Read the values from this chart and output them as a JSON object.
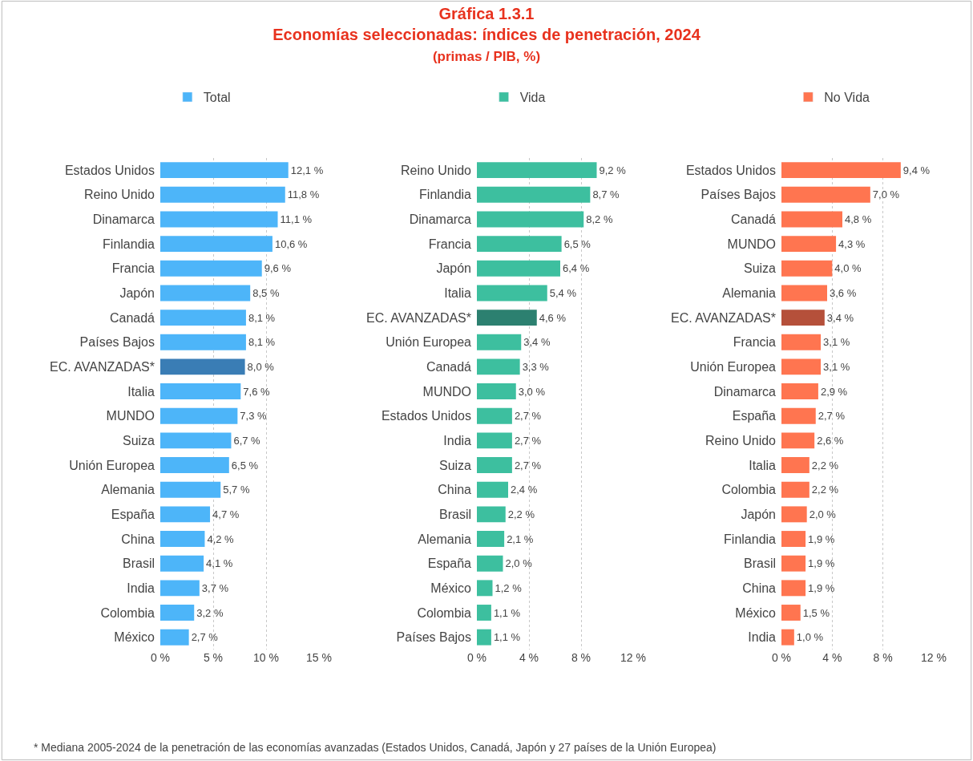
{
  "chart_data": [
    {
      "type": "bar",
      "orientation": "horizontal",
      "categories": [
        "Estados Unidos",
        "Reino Unido",
        "Dinamarca",
        "Finlandia",
        "Francia",
        "Japón",
        "Canadá",
        "Países Bajos",
        "EC. AVANZADAS*",
        "Italia",
        "MUNDO",
        "Suiza",
        "Unión Europea",
        "Alemania",
        "España",
        "China",
        "Brasil",
        "India",
        "Colombia",
        "México"
      ],
      "series": [
        {
          "name": "Total",
          "color": "#4db5f9",
          "colors": [
            "#4db5f9",
            "#4db5f9",
            "#4db5f9",
            "#4db5f9",
            "#4db5f9",
            "#4db5f9",
            "#4db5f9",
            "#4db5f9",
            "#3a7db5",
            "#4db5f9",
            "#4db5f9",
            "#4db5f9",
            "#4db5f9",
            "#4db5f9",
            "#4db5f9",
            "#4db5f9",
            "#4db5f9",
            "#4db5f9",
            "#4db5f9",
            "#4db5f9"
          ],
          "values": [
            12.1,
            11.8,
            11.1,
            10.6,
            9.6,
            8.5,
            8.1,
            8.1,
            8.0,
            7.6,
            7.3,
            6.7,
            6.5,
            5.7,
            4.7,
            4.2,
            4.1,
            3.7,
            3.2,
            2.7
          ],
          "value_labels": [
            "12,1 %",
            "11,8 %",
            "11,1 %",
            "10,6 %",
            "9,6 %",
            "8,5 %",
            "8,1 %",
            "8,1 %",
            "8,0 %",
            "7,6 %",
            "7,3 %",
            "6,7 %",
            "6,5 %",
            "5,7 %",
            "4,7 %",
            "4,2 %",
            "4,1 %",
            "3,7 %",
            "3,2 %",
            "2,7 %"
          ]
        }
      ],
      "xlim": [
        0,
        15
      ],
      "xticks": [
        {
          "value": 0,
          "label": "0 %"
        },
        {
          "value": 5,
          "label": "5 %"
        },
        {
          "value": 10,
          "label": "10 %"
        },
        {
          "value": 15,
          "label": "15 %"
        }
      ],
      "grid": "x",
      "legend": "top",
      "annotations": [
        "* Mediana 2005-2024 de la penetración de las economías avanzadas (Estados Unidos, Canadá, Japón y 27 países de la Unión Europea)"
      ]
    },
    {
      "type": "bar",
      "orientation": "horizontal",
      "title": "Gráfica 1.3.1\nEconomías seleccionadas: índices de penetración, 2024",
      "subtitle": "(primas / PIB, %)",
      "categories": [
        "Reino Unido",
        "Finlandia",
        "Dinamarca",
        "Francia",
        "Japón",
        "Italia",
        "EC. AVANZADAS*",
        "Unión Europea",
        "Canadá",
        "MUNDO",
        "Estados Unidos",
        "India",
        "Suiza",
        "China",
        "Brasil",
        "Alemania",
        "España",
        "México",
        "Colombia",
        "Países Bajos"
      ],
      "series": [
        {
          "name": "Vida",
          "color": "#3dbf9f",
          "colors": [
            "#3dbf9f",
            "#3dbf9f",
            "#3dbf9f",
            "#3dbf9f",
            "#3dbf9f",
            "#3dbf9f",
            "#2c8070",
            "#3dbf9f",
            "#3dbf9f",
            "#3dbf9f",
            "#3dbf9f",
            "#3dbf9f",
            "#3dbf9f",
            "#3dbf9f",
            "#3dbf9f",
            "#3dbf9f",
            "#3dbf9f",
            "#3dbf9f",
            "#3dbf9f",
            "#3dbf9f"
          ],
          "values": [
            9.2,
            8.7,
            8.2,
            6.5,
            6.4,
            5.4,
            4.6,
            3.4,
            3.3,
            3.0,
            2.7,
            2.7,
            2.7,
            2.4,
            2.2,
            2.1,
            2.0,
            1.2,
            1.1,
            1.1
          ],
          "value_labels": [
            "9,2 %",
            "8,7 %",
            "8,2 %",
            "6,5 %",
            "6,4 %",
            "5,4 %",
            "4,6 %",
            "3,4 %",
            "3,3 %",
            "3,0 %",
            "2,7 %",
            "2,7 %",
            "2,7 %",
            "2,4 %",
            "2,2 %",
            "2,1 %",
            "2,0 %",
            "1,2 %",
            "1,1 %",
            "1,1 %"
          ]
        }
      ],
      "xlim": [
        0,
        12
      ],
      "xticks": [
        {
          "value": 0,
          "label": "0 %"
        },
        {
          "value": 4,
          "label": "4 %"
        },
        {
          "value": 8,
          "label": "8 %"
        },
        {
          "value": 12,
          "label": "12 %"
        }
      ],
      "grid": "x",
      "legend": "top"
    },
    {
      "type": "bar",
      "orientation": "horizontal",
      "categories": [
        "Estados Unidos",
        "Países Bajos",
        "Canadá",
        "MUNDO",
        "Suiza",
        "Alemania",
        "EC. AVANZADAS*",
        "Francia",
        "Unión Europea",
        "Dinamarca",
        "España",
        "Reino Unido",
        "Italia",
        "Colombia",
        "Japón",
        "Finlandia",
        "Brasil",
        "China",
        "México",
        "India"
      ],
      "series": [
        {
          "name": "No Vida",
          "color": "#ff7550",
          "colors": [
            "#ff7550",
            "#ff7550",
            "#ff7550",
            "#ff7550",
            "#ff7550",
            "#ff7550",
            "#b5503a",
            "#ff7550",
            "#ff7550",
            "#ff7550",
            "#ff7550",
            "#ff7550",
            "#ff7550",
            "#ff7550",
            "#ff7550",
            "#ff7550",
            "#ff7550",
            "#ff7550",
            "#ff7550",
            "#ff7550"
          ],
          "values": [
            9.4,
            7.0,
            4.8,
            4.3,
            4.0,
            3.6,
            3.4,
            3.1,
            3.1,
            2.9,
            2.7,
            2.6,
            2.2,
            2.2,
            2.0,
            1.9,
            1.9,
            1.9,
            1.5,
            1.0
          ],
          "value_labels": [
            "9,4 %",
            "7,0 %",
            "4,8 %",
            "4,3 %",
            "4,0 %",
            "3,6 %",
            "3,4 %",
            "3,1 %",
            "3,1 %",
            "2,9 %",
            "2,7 %",
            "2,6 %",
            "2,2 %",
            "2,2 %",
            "2,0 %",
            "1,9 %",
            "1,9 %",
            "1,9 %",
            "1,5 %",
            "1,0 %"
          ]
        }
      ],
      "xlim": [
        0,
        12
      ],
      "xticks": [
        {
          "value": 0,
          "label": "0 %"
        },
        {
          "value": 4,
          "label": "4 %"
        },
        {
          "value": 8,
          "label": "8 %"
        },
        {
          "value": 12,
          "label": "12 %"
        }
      ],
      "grid": "x",
      "legend": "top"
    }
  ]
}
